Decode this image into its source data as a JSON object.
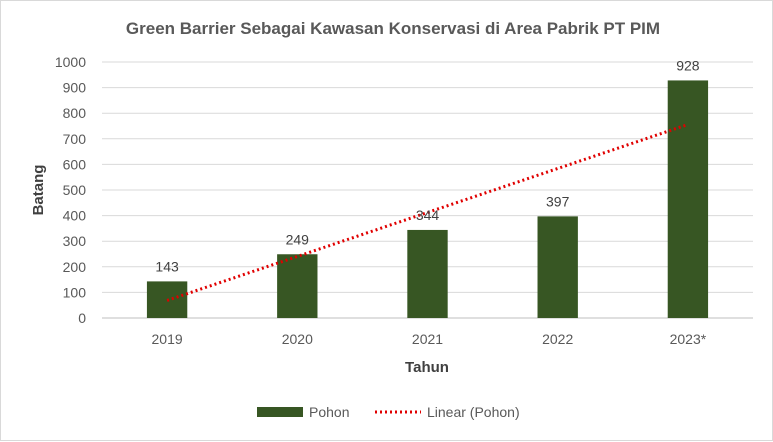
{
  "chart_data": {
    "type": "bar",
    "title": "Green Barrier Sebagai Kawasan Konservasi di Area Pabrik PT PIM",
    "xlabel": "Tahun",
    "ylabel": "Batang",
    "categories": [
      "2019",
      "2020",
      "2021",
      "2022",
      "2023*"
    ],
    "series": [
      {
        "name": "Pohon",
        "values": [
          143,
          249,
          344,
          397,
          928
        ],
        "color": "#375623"
      }
    ],
    "trendline": {
      "name": "Linear (Pohon)",
      "type": "linear",
      "color": "#e00000",
      "style": "dotted"
    },
    "ylim": [
      0,
      1000
    ],
    "yticks": [
      0,
      100,
      200,
      300,
      400,
      500,
      600,
      700,
      800,
      900,
      1000
    ],
    "grid": true,
    "legend_position": "bottom",
    "data_labels": true
  }
}
